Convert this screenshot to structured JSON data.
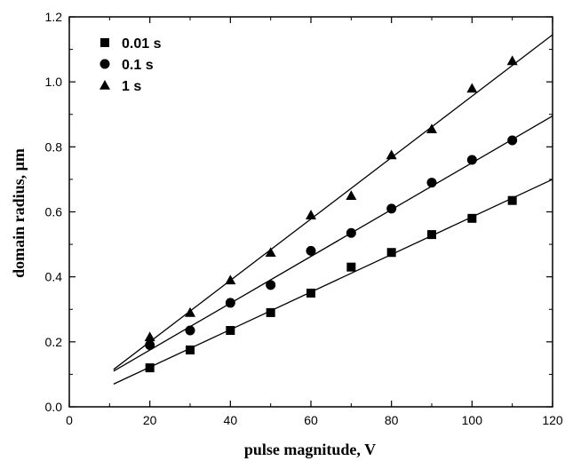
{
  "chart_data": {
    "type": "scatter",
    "title": "",
    "xlabel": "pulse magnitude, V",
    "ylabel": "domain radius, μm",
    "xlim": [
      0,
      120
    ],
    "ylim": [
      0.0,
      1.2
    ],
    "xticks": [
      "0",
      "20",
      "40",
      "60",
      "80",
      "100",
      "120"
    ],
    "yticks": [
      "0.0",
      "0.2",
      "0.4",
      "0.6",
      "0.8",
      "1.0",
      "1.2"
    ],
    "grid": false,
    "legend_position": "top-left",
    "series": [
      {
        "name": "0.01 s",
        "marker": "square",
        "x": [
          20,
          30,
          40,
          50,
          60,
          70,
          80,
          90,
          100,
          110
        ],
        "y": [
          0.12,
          0.175,
          0.235,
          0.29,
          0.35,
          0.43,
          0.475,
          0.53,
          0.58,
          0.635
        ],
        "fit_line": {
          "x": [
            11,
            120
          ],
          "y": [
            0.07,
            0.7
          ]
        }
      },
      {
        "name": "0.1 s",
        "marker": "circle",
        "x": [
          20,
          30,
          40,
          50,
          60,
          70,
          80,
          90,
          100,
          110
        ],
        "y": [
          0.19,
          0.235,
          0.32,
          0.375,
          0.48,
          0.535,
          0.61,
          0.69,
          0.76,
          0.82
        ],
        "fit_line": {
          "x": [
            11,
            120
          ],
          "y": [
            0.11,
            0.895
          ]
        }
      },
      {
        "name": "1 s",
        "marker": "triangle",
        "x": [
          20,
          30,
          40,
          50,
          60,
          70,
          80,
          90,
          100,
          110
        ],
        "y": [
          0.215,
          0.29,
          0.39,
          0.475,
          0.59,
          0.65,
          0.775,
          0.855,
          0.98,
          1.065
        ],
        "fit_line": {
          "x": [
            11,
            120
          ],
          "y": [
            0.115,
            1.145
          ]
        }
      }
    ]
  }
}
